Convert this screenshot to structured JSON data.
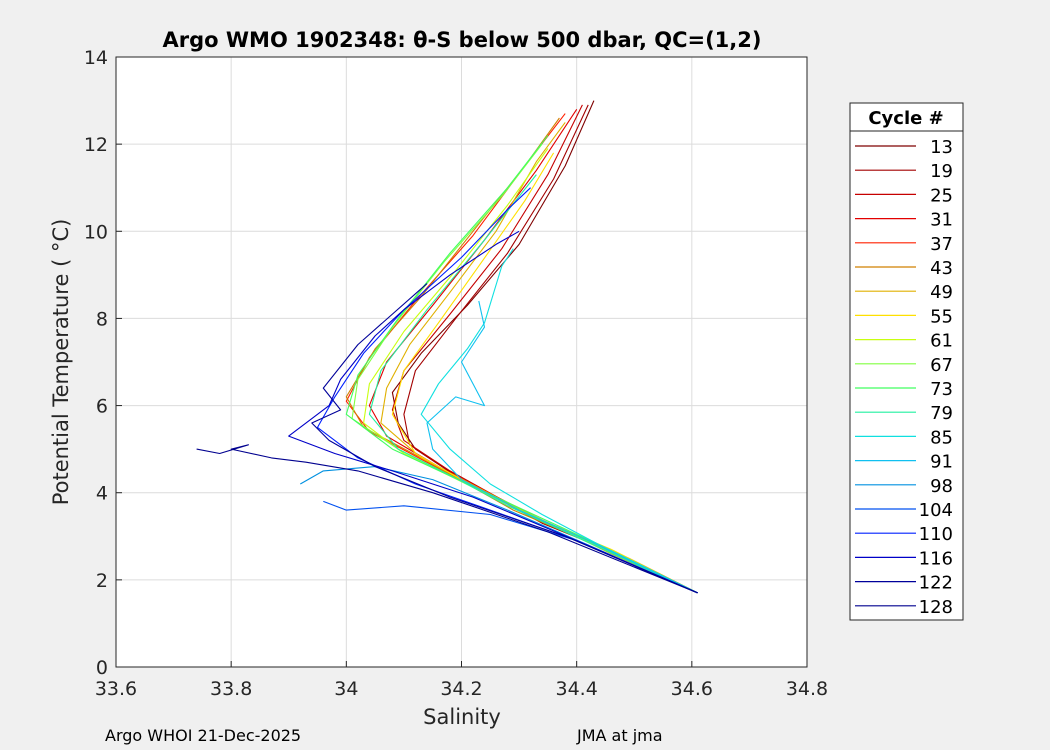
{
  "chart_data": {
    "type": "line",
    "title": "Argo WMO 1902348: θ-S below 500 dbar,  QC=(1,2)",
    "xlabel": "Salinity",
    "ylabel": "Potential Temperature ( °C)",
    "xlim": [
      33.6,
      34.8
    ],
    "ylim": [
      0,
      14
    ],
    "xticks": [
      "33.6",
      "33.8",
      "34",
      "34.2",
      "34.4",
      "34.6",
      "34.8"
    ],
    "yticks": [
      "0",
      "2",
      "4",
      "6",
      "8",
      "10",
      "12",
      "14"
    ],
    "grid": true,
    "legend": {
      "title": "Cycle #",
      "placement": "outside-right",
      "entries": [
        {
          "name": "13",
          "color": "#7f0000"
        },
        {
          "name": "19",
          "color": "#a30000"
        },
        {
          "name": "25",
          "color": "#c60000"
        },
        {
          "name": "31",
          "color": "#e30000"
        },
        {
          "name": "37",
          "color": "#ff2000"
        },
        {
          "name": "43",
          "color": "#d08000"
        },
        {
          "name": "49",
          "color": "#e0b000"
        },
        {
          "name": "55",
          "color": "#ffe000"
        },
        {
          "name": "61",
          "color": "#c8ff10"
        },
        {
          "name": "67",
          "color": "#80ff40"
        },
        {
          "name": "73",
          "color": "#40ff60"
        },
        {
          "name": "79",
          "color": "#20f0a0"
        },
        {
          "name": "85",
          "color": "#10e0e0"
        },
        {
          "name": "91",
          "color": "#10c0f0"
        },
        {
          "name": "98",
          "color": "#0090e0"
        },
        {
          "name": "104",
          "color": "#0050f0"
        },
        {
          "name": "110",
          "color": "#0020ff"
        },
        {
          "name": "116",
          "color": "#0000c8"
        },
        {
          "name": "122",
          "color": "#00009a"
        },
        {
          "name": "128",
          "color": "#00008f"
        }
      ]
    },
    "series": [
      {
        "name": "13",
        "points": [
          [
            34.61,
            1.7
          ],
          [
            34.5,
            2.4
          ],
          [
            34.35,
            3.3
          ],
          [
            34.2,
            4.3
          ],
          [
            34.12,
            5.0
          ],
          [
            34.09,
            5.6
          ],
          [
            34.08,
            6.3
          ],
          [
            34.13,
            7.2
          ],
          [
            34.21,
            8.3
          ],
          [
            34.3,
            9.7
          ],
          [
            34.38,
            11.5
          ],
          [
            34.43,
            13.0
          ]
        ]
      },
      {
        "name": "19",
        "points": [
          [
            34.61,
            1.7
          ],
          [
            34.49,
            2.5
          ],
          [
            34.34,
            3.3
          ],
          [
            34.19,
            4.4
          ],
          [
            34.11,
            5.1
          ],
          [
            34.1,
            5.8
          ],
          [
            34.12,
            6.8
          ],
          [
            34.19,
            8.0
          ],
          [
            34.28,
            9.5
          ],
          [
            34.36,
            11.2
          ],
          [
            34.42,
            12.9
          ]
        ]
      },
      {
        "name": "25",
        "points": [
          [
            34.61,
            1.7
          ],
          [
            34.5,
            2.4
          ],
          [
            34.33,
            3.4
          ],
          [
            34.18,
            4.5
          ],
          [
            34.1,
            5.2
          ],
          [
            34.08,
            5.9
          ],
          [
            34.1,
            6.8
          ],
          [
            34.18,
            8.1
          ],
          [
            34.27,
            9.6
          ],
          [
            34.35,
            11.3
          ],
          [
            34.41,
            12.9
          ]
        ]
      },
      {
        "name": "31",
        "points": [
          [
            34.61,
            1.7
          ],
          [
            34.48,
            2.5
          ],
          [
            34.32,
            3.5
          ],
          [
            34.16,
            4.6
          ],
          [
            34.07,
            5.3
          ],
          [
            34.04,
            6.0
          ],
          [
            34.07,
            7.0
          ],
          [
            34.15,
            8.3
          ],
          [
            34.24,
            9.8
          ],
          [
            34.33,
            11.4
          ],
          [
            34.4,
            12.8
          ]
        ]
      },
      {
        "name": "37",
        "points": [
          [
            34.61,
            1.7
          ],
          [
            34.47,
            2.6
          ],
          [
            34.3,
            3.6
          ],
          [
            34.14,
            4.7
          ],
          [
            34.04,
            5.4
          ],
          [
            34.0,
            6.1
          ],
          [
            34.04,
            7.1
          ],
          [
            34.12,
            8.4
          ],
          [
            34.22,
            9.9
          ],
          [
            34.31,
            11.5
          ],
          [
            34.38,
            12.7
          ]
        ]
      },
      {
        "name": "43",
        "points": [
          [
            34.61,
            1.7
          ],
          [
            34.47,
            2.6
          ],
          [
            34.29,
            3.6
          ],
          [
            34.13,
            4.8
          ],
          [
            34.03,
            5.5
          ],
          [
            34.0,
            6.2
          ],
          [
            34.05,
            7.3
          ],
          [
            34.13,
            8.5
          ],
          [
            34.22,
            10.0
          ],
          [
            34.31,
            11.5
          ],
          [
            34.37,
            12.6
          ]
        ]
      },
      {
        "name": "49",
        "points": [
          [
            34.61,
            1.7
          ],
          [
            34.46,
            2.6
          ],
          [
            34.29,
            3.7
          ],
          [
            34.13,
            4.8
          ],
          [
            34.06,
            5.6
          ],
          [
            34.07,
            6.4
          ],
          [
            34.11,
            7.4
          ],
          [
            34.18,
            8.6
          ],
          [
            34.26,
            10.0
          ],
          [
            34.33,
            11.6
          ],
          [
            34.38,
            12.5
          ]
        ]
      },
      {
        "name": "55",
        "points": [
          [
            34.61,
            1.7
          ],
          [
            34.46,
            2.7
          ],
          [
            34.28,
            3.7
          ],
          [
            34.12,
            4.9
          ],
          [
            34.08,
            5.8
          ],
          [
            34.1,
            6.8
          ],
          [
            34.16,
            7.9
          ],
          [
            34.23,
            9.2
          ],
          [
            34.31,
            10.7
          ],
          [
            34.36,
            11.8
          ]
        ]
      },
      {
        "name": "61",
        "points": [
          [
            34.61,
            1.7
          ],
          [
            34.45,
            2.7
          ],
          [
            34.27,
            3.8
          ],
          [
            34.1,
            4.9
          ],
          [
            34.03,
            5.6
          ],
          [
            34.04,
            6.5
          ],
          [
            34.1,
            7.7
          ],
          [
            34.19,
            9.1
          ],
          [
            34.28,
            10.6
          ],
          [
            34.35,
            11.9
          ]
        ]
      },
      {
        "name": "67",
        "points": [
          [
            34.61,
            1.7
          ],
          [
            34.45,
            2.7
          ],
          [
            34.27,
            3.8
          ],
          [
            34.09,
            5.0
          ],
          [
            34.01,
            5.7
          ],
          [
            34.02,
            6.6
          ],
          [
            34.08,
            7.8
          ],
          [
            34.17,
            9.3
          ],
          [
            34.27,
            10.8
          ],
          [
            34.34,
            12.0
          ]
        ]
      },
      {
        "name": "73",
        "points": [
          [
            34.61,
            1.7
          ],
          [
            34.44,
            2.8
          ],
          [
            34.26,
            3.9
          ],
          [
            34.08,
            5.0
          ],
          [
            34.0,
            5.8
          ],
          [
            34.02,
            6.7
          ],
          [
            34.09,
            8.0
          ],
          [
            34.18,
            9.5
          ],
          [
            34.28,
            11.0
          ],
          [
            34.35,
            12.2
          ]
        ]
      },
      {
        "name": "79",
        "points": [
          [
            34.61,
            1.7
          ],
          [
            34.43,
            2.8
          ],
          [
            34.28,
            3.7
          ],
          [
            34.18,
            4.4
          ],
          [
            34.09,
            5.0
          ],
          [
            34.04,
            5.8
          ],
          [
            34.06,
            6.8
          ],
          [
            34.14,
            8.2
          ],
          [
            34.24,
            9.8
          ],
          [
            34.33,
            11.3
          ]
        ]
      },
      {
        "name": "85",
        "points": [
          [
            34.61,
            1.7
          ],
          [
            34.44,
            2.8
          ],
          [
            34.34,
            3.5
          ],
          [
            34.25,
            4.2
          ],
          [
            34.18,
            5.0
          ],
          [
            34.13,
            5.8
          ],
          [
            34.16,
            6.5
          ],
          [
            34.21,
            7.3
          ],
          [
            34.24,
            7.9
          ],
          [
            34.27,
            9.2
          ],
          [
            34.29,
            9.6
          ]
        ]
      },
      {
        "name": "91",
        "points": [
          [
            34.61,
            1.7
          ],
          [
            34.42,
            2.9
          ],
          [
            34.3,
            3.6
          ],
          [
            34.2,
            4.3
          ],
          [
            34.15,
            5.0
          ],
          [
            34.14,
            5.6
          ],
          [
            34.19,
            6.2
          ],
          [
            34.24,
            6.0
          ],
          [
            34.2,
            7.0
          ],
          [
            34.24,
            7.8
          ],
          [
            34.23,
            8.4
          ]
        ]
      },
      {
        "name": "98",
        "points": [
          [
            34.61,
            1.7
          ],
          [
            34.42,
            2.8
          ],
          [
            34.28,
            3.6
          ],
          [
            34.15,
            4.3
          ],
          [
            34.05,
            4.6
          ],
          [
            33.96,
            4.5
          ],
          [
            33.92,
            4.2
          ]
        ]
      },
      {
        "name": "104",
        "points": [
          [
            34.61,
            1.7
          ],
          [
            34.4,
            2.9
          ],
          [
            34.25,
            3.5
          ],
          [
            34.1,
            3.7
          ],
          [
            34.0,
            3.6
          ],
          [
            33.96,
            3.8
          ]
        ]
      },
      {
        "name": "110",
        "points": [
          [
            34.61,
            1.7
          ],
          [
            34.4,
            2.9
          ],
          [
            34.25,
            3.6
          ],
          [
            34.12,
            4.2
          ],
          [
            34.02,
            4.8
          ],
          [
            33.95,
            5.5
          ],
          [
            33.98,
            6.2
          ],
          [
            34.03,
            7.2
          ],
          [
            34.1,
            8.2
          ],
          [
            34.2,
            9.4
          ],
          [
            34.28,
            10.5
          ],
          [
            34.32,
            11.0
          ]
        ]
      },
      {
        "name": "116",
        "points": [
          [
            34.61,
            1.7
          ],
          [
            34.4,
            2.9
          ],
          [
            34.22,
            3.9
          ],
          [
            34.08,
            4.5
          ],
          [
            33.98,
            4.9
          ],
          [
            33.9,
            5.3
          ],
          [
            33.97,
            6.0
          ],
          [
            33.99,
            6.6
          ],
          [
            34.05,
            7.6
          ],
          [
            34.1,
            8.2
          ],
          [
            34.18,
            9.0
          ],
          [
            34.26,
            9.7
          ],
          [
            34.3,
            10.0
          ]
        ]
      },
      {
        "name": "122",
        "points": [
          [
            34.61,
            1.7
          ],
          [
            34.38,
            3.0
          ],
          [
            34.18,
            3.9
          ],
          [
            34.05,
            4.6
          ],
          [
            33.97,
            5.2
          ],
          [
            33.94,
            5.6
          ],
          [
            33.99,
            5.9
          ],
          [
            33.96,
            6.4
          ],
          [
            34.02,
            7.4
          ],
          [
            34.08,
            8.1
          ],
          [
            34.14,
            8.8
          ]
        ]
      },
      {
        "name": "128",
        "points": [
          [
            34.61,
            1.7
          ],
          [
            34.35,
            3.1
          ],
          [
            34.15,
            4.0
          ],
          [
            34.02,
            4.5
          ],
          [
            33.93,
            4.7
          ],
          [
            33.87,
            4.8
          ],
          [
            33.8,
            5.0
          ],
          [
            33.83,
            5.1
          ],
          [
            33.78,
            4.9
          ],
          [
            33.74,
            5.0
          ]
        ]
      }
    ]
  },
  "footer": {
    "left": "Argo WHOI 21-Dec-2025",
    "right": "JMA at jma"
  }
}
